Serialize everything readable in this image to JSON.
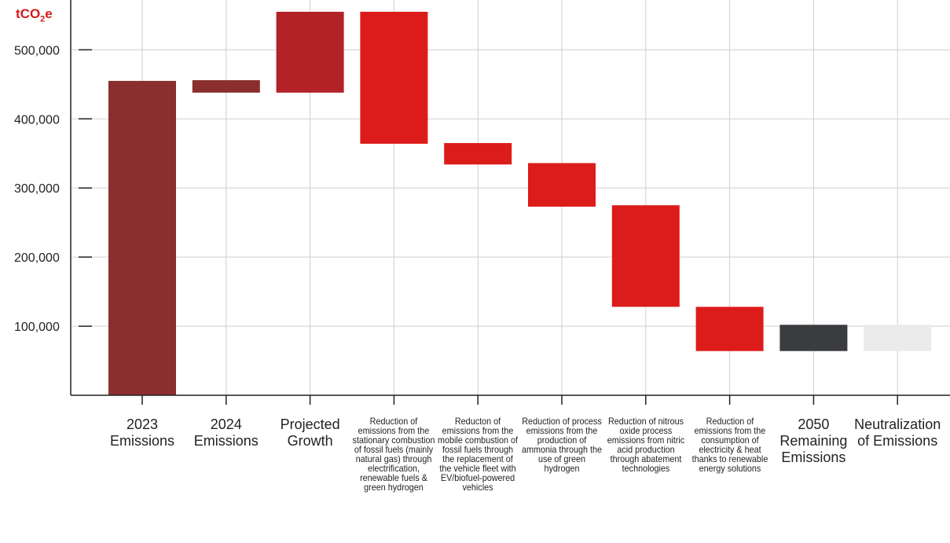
{
  "chart_data": {
    "type": "bar",
    "subtype": "waterfall",
    "unit_label": {
      "main": "tCO",
      "sub": "2",
      "suffix": "e"
    },
    "ylim": [
      0,
      555000
    ],
    "yticks": [
      100000,
      200000,
      300000,
      400000,
      500000
    ],
    "ytick_labels": [
      "100,000",
      "200,000",
      "300,000",
      "400,000",
      "500,000"
    ],
    "grid": true,
    "categories": [
      "2023 Emissions",
      "2024 Emissions",
      "Projected Growth",
      "Reduction of emissions from the stationary combustion of fossil fuels (mainly natural gas) through electrification, renewable fuels & green hydrogen",
      "Reducton of emissions from the mobile combustion of fossil fuels through the replacement of the vehicle fleet with EV/biofuel-powered vehicles",
      "Reduction of process emissions from the production of ammonia through the use of green hydrogen",
      "Reduction of nitrous oxide process emissions from nitric acid production through abatement technologies",
      "Reduction of emissions from the consumption of electricity & heat thanks to renewable energy solutions",
      "2050 Remaining Emissions",
      "Neutralization of Emissions"
    ],
    "bars": [
      {
        "low": 0,
        "high": 455000,
        "color": "#8b2e2e"
      },
      {
        "low": 438000,
        "high": 456000,
        "color": "#8b2e2e"
      },
      {
        "low": 438000,
        "high": 555000,
        "color": "#b22227"
      },
      {
        "low": 364000,
        "high": 555000,
        "color": "#dc1c1a"
      },
      {
        "low": 334000,
        "high": 365000,
        "color": "#dc1c1a"
      },
      {
        "low": 273000,
        "high": 336000,
        "color": "#dc1c1a"
      },
      {
        "low": 128000,
        "high": 275000,
        "color": "#dc1c1a"
      },
      {
        "low": 64000,
        "high": 128000,
        "color": "#dc1c1a"
      },
      {
        "low": 64000,
        "high": 102000,
        "color": "#3a3c40"
      },
      {
        "low": 64000,
        "high": 102000,
        "color": "#ebebeb"
      }
    ],
    "colors": {
      "baseline": "#8b2e2e",
      "growth": "#b22227",
      "reduction": "#dc1c1a",
      "remaining": "#3a3c40",
      "neutralization": "#ebebeb",
      "unit_label": "#d7191c"
    }
  }
}
